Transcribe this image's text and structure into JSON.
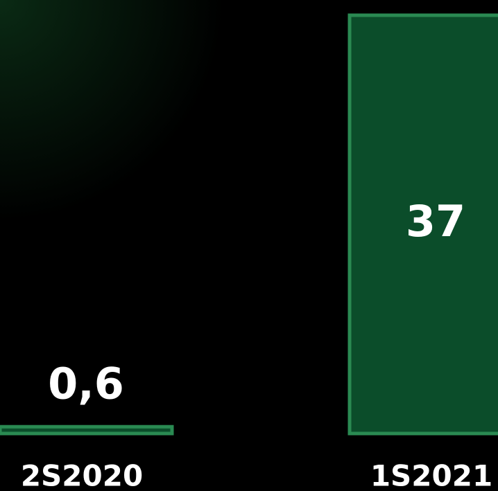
{
  "chart_data": {
    "type": "bar",
    "categories": [
      "2S2020",
      "1S2021"
    ],
    "values": [
      0.6,
      37
    ],
    "value_labels": [
      "0,6",
      "37"
    ],
    "color": "#0b4d2a",
    "edge_color": "#2a8a52",
    "ylim": [
      0,
      37
    ]
  }
}
